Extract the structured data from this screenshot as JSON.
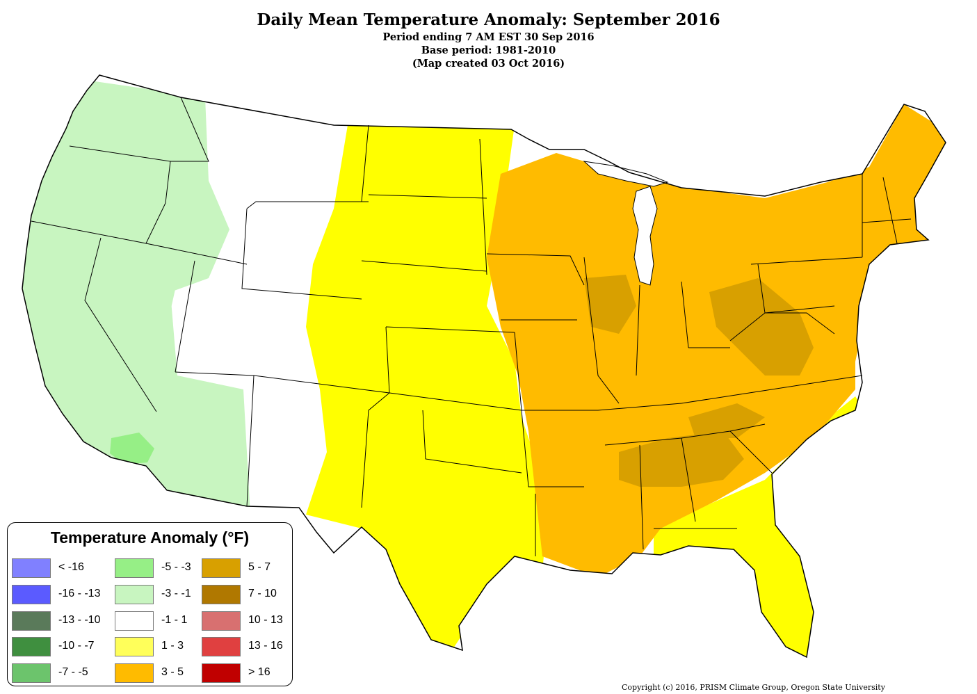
{
  "titles": {
    "main": "Daily Mean Temperature Anomaly: September 2016",
    "line1": "Period ending 7 AM EST 30 Sep 2016",
    "line2": "Base period: 1981-2010",
    "line3": "(Map created 03 Oct 2016)"
  },
  "legend": {
    "title": "Temperature Anomaly (°F)",
    "items": [
      {
        "label": "< -16",
        "color": "#8080ff"
      },
      {
        "label": "-16 - -13",
        "color": "#5b5bff"
      },
      {
        "label": "-13 - -10",
        "color": "#5a7a5a"
      },
      {
        "label": "-10 - -7",
        "color": "#3f8f3f"
      },
      {
        "label": "-7 - -5",
        "color": "#6cc46c"
      },
      {
        "label": "-5 - -3",
        "color": "#96ef86"
      },
      {
        "label": "-3 - -1",
        "color": "#c8f5c0"
      },
      {
        "label": "-1 - 1",
        "color": "#ffffff"
      },
      {
        "label": "1 - 3",
        "color": "#ffff5a"
      },
      {
        "label": "3 - 5",
        "color": "#ffbb00"
      },
      {
        "label": "5 - 7",
        "color": "#d8a000"
      },
      {
        "label": "7 - 10",
        "color": "#b07800"
      },
      {
        "label": "10 - 13",
        "color": "#d87070"
      },
      {
        "label": "13 - 16",
        "color": "#e04040"
      },
      {
        "label": "> 16",
        "color": "#c00000"
      }
    ]
  },
  "colors": {
    "cool": "#c8f5c0",
    "cooler": "#96ef86",
    "neutral": "#ffffff",
    "warm": "#ffff00",
    "warmer": "#ffbb00",
    "warmest": "#d8a000",
    "state_line": "#000000"
  },
  "copyright": "Copyright (c) 2016, PRISM Climate Group, Oregon State University"
}
